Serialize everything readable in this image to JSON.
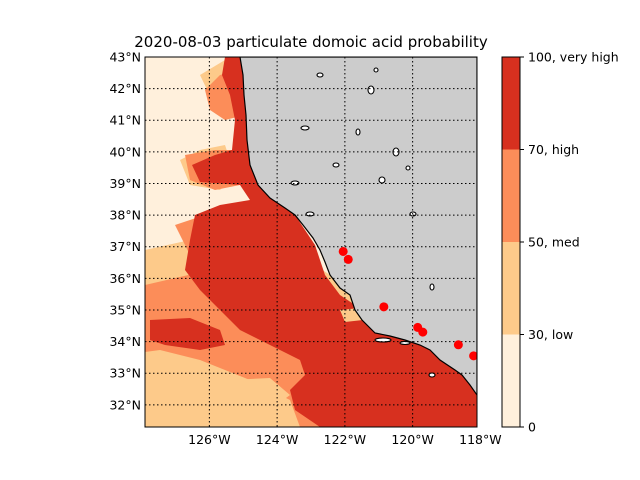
{
  "title": "2020-08-03 particulate domoic acid probability",
  "map": {
    "lat_range": [
      31.3,
      43.0
    ],
    "lon_range": [
      -127.9,
      -118.1
    ],
    "lat_ticks": [
      32,
      33,
      34,
      35,
      36,
      37,
      38,
      39,
      40,
      41,
      42,
      43
    ],
    "lat_tick_labels": [
      "32°N",
      "33°N",
      "34°N",
      "35°N",
      "36°N",
      "37°N",
      "38°N",
      "39°N",
      "40°N",
      "41°N",
      "42°N",
      "43°N"
    ],
    "lon_ticks": [
      -126,
      -124,
      -122,
      -120,
      -118
    ],
    "lon_tick_labels": [
      "126$^\\circ$W",
      "124$^\\circ$W",
      "122$^\\circ$W",
      "120$^\\circ$W",
      "118$^\\circ$W"
    ],
    "land_color": "#cccccc",
    "grid": "dotted",
    "observation_color": "#ff0000",
    "observations": [
      {
        "lat": 36.85,
        "lon": -122.05
      },
      {
        "lat": 36.6,
        "lon": -121.9
      },
      {
        "lat": 35.1,
        "lon": -120.85
      },
      {
        "lat": 34.45,
        "lon": -119.85
      },
      {
        "lat": 34.3,
        "lon": -119.7
      },
      {
        "lat": 33.9,
        "lon": -118.65
      },
      {
        "lat": 33.55,
        "lon": -118.2
      },
      {
        "lat": 32.9,
        "lon": -117.3
      }
    ]
  },
  "colorbar": {
    "levels": [
      {
        "label": "0",
        "color": "#fff0dc"
      },
      {
        "label": "30, low",
        "color": "#fdca8a"
      },
      {
        "label": "50, med",
        "color": "#fc8d59"
      },
      {
        "label": "70, high",
        "color": "#d7301f"
      },
      {
        "label": "100, very high",
        "color": ""
      }
    ]
  }
}
